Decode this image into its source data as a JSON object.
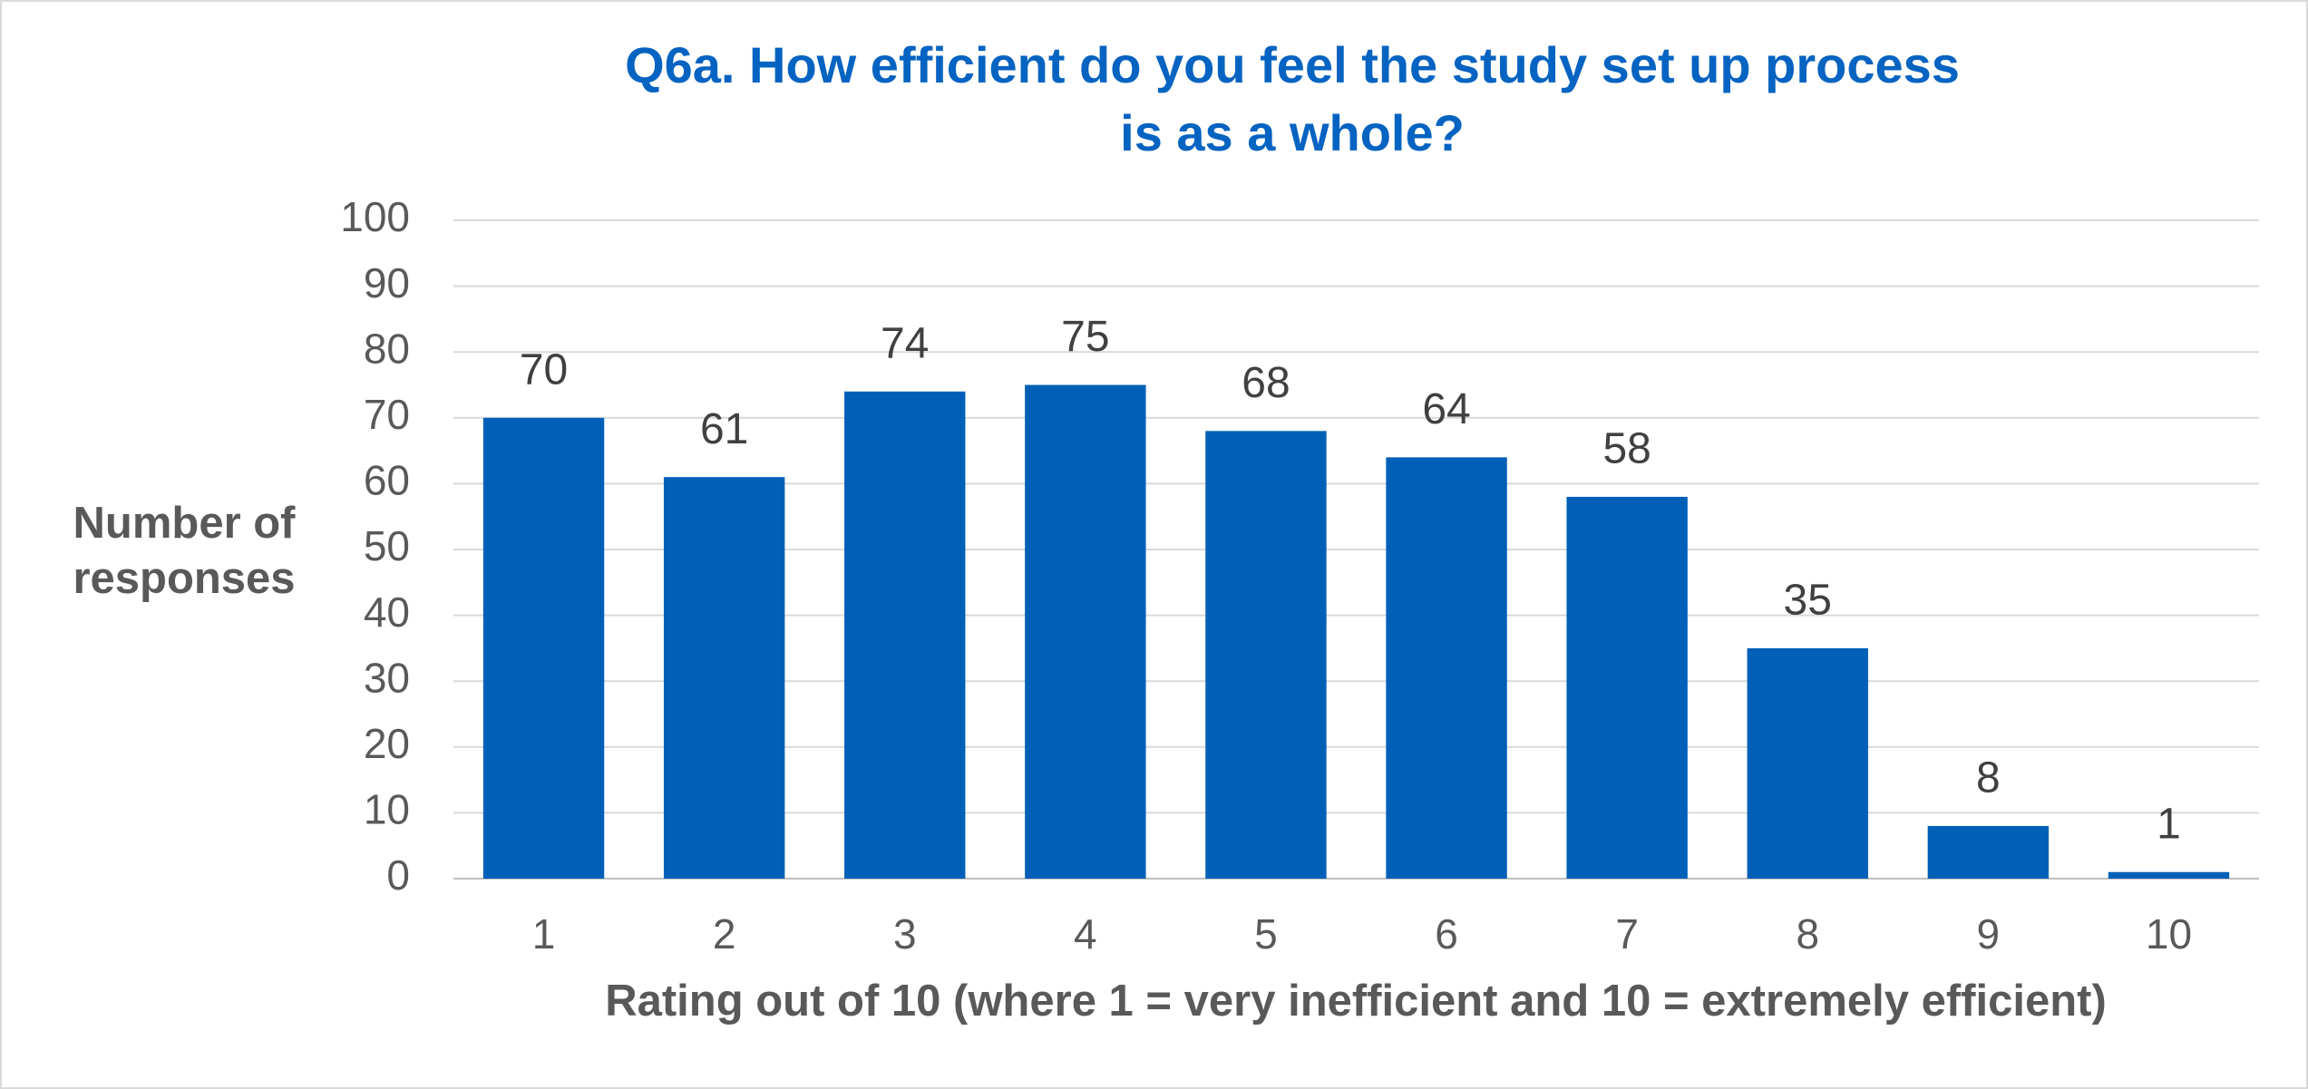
{
  "chart_data": {
    "type": "bar",
    "title": [
      "Q6a. How efficient do you feel the study set up process",
      "is as a whole?"
    ],
    "y_label": [
      "Number of",
      "responses"
    ],
    "x_label": "Rating out of 10 (where 1 = very inefficient and 10 = extremely efficient)",
    "categories": [
      "1",
      "2",
      "3",
      "4",
      "5",
      "6",
      "7",
      "8",
      "9",
      "10"
    ],
    "values": [
      70,
      61,
      74,
      75,
      68,
      64,
      58,
      35,
      8,
      1
    ],
    "color": "#0060b8",
    "ylim": [
      0,
      100
    ],
    "yticks": [
      0,
      10,
      20,
      30,
      40,
      50,
      60,
      70,
      80,
      90,
      100
    ],
    "grid": true
  }
}
